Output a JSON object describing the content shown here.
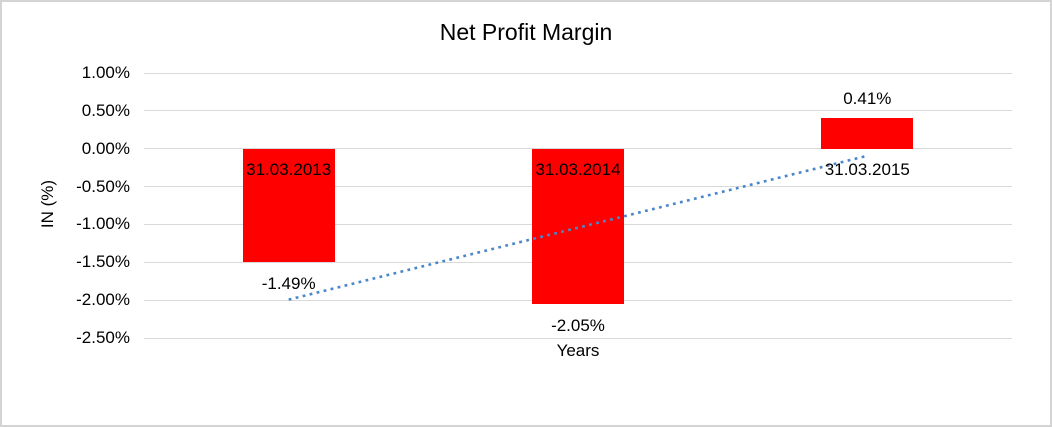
{
  "chart_data": {
    "type": "bar",
    "title": "Net Profit Margin",
    "xlabel": "Years",
    "ylabel": "IN (%)",
    "categories": [
      "31.03.2013",
      "31.03.2014",
      "31.03.2015"
    ],
    "values": [
      -1.49,
      -2.05,
      0.41
    ],
    "data_labels": [
      "-1.49%",
      "-2.05%",
      "0.41%"
    ],
    "ytick_labels": [
      "1.00%",
      "0.50%",
      "0.00%",
      "-0.50%",
      "-1.00%",
      "-1.50%",
      "-2.00%",
      "-2.50%"
    ],
    "ytick_values": [
      1.0,
      0.5,
      0.0,
      -0.5,
      -1.0,
      -1.5,
      -2.0,
      -2.5
    ],
    "ylim": [
      -2.5,
      1.0
    ],
    "grid": true,
    "legend_position": "none",
    "bar_color": "#ff0000",
    "trendline": {
      "type": "linear",
      "style": "dotted",
      "color": "#4a86c8"
    },
    "gridline_color": "#d9d9d9",
    "frame_border_color": "#d4d4d4",
    "text_color": "#000000"
  }
}
